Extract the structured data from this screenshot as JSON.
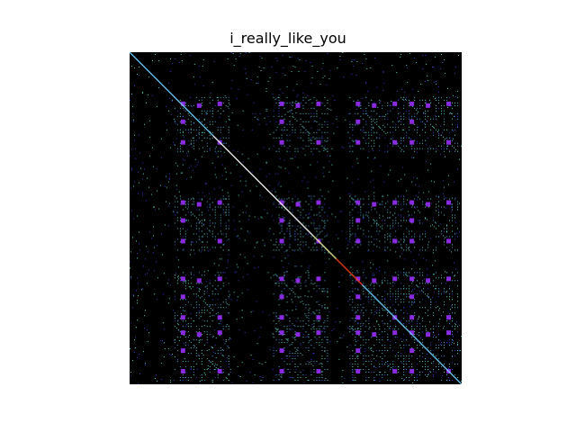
{
  "figure": {
    "background": "#ffffff"
  },
  "chart_data": {
    "type": "heatmap",
    "title": "i_really_like_you",
    "xlabel": "",
    "ylabel": "",
    "grid": false,
    "legend": "none",
    "axes_visible": false,
    "matrix_size": 370,
    "background_color": "#000000",
    "colormap": [
      "#000000",
      "#3b3bd8",
      "#4a9fd8",
      "#5ad7c8",
      "#8ae8b0",
      "#e8e890",
      "#e86a30",
      "#d02020"
    ],
    "diagonal": {
      "from": [
        0,
        0
      ],
      "to": [
        370,
        370
      ],
      "color_sequence": [
        "#6fd0ff",
        "#ffffff",
        "#f0f0a0",
        "#ff3b1a",
        "#6fd0ff"
      ]
    },
    "repeated_block_starts": [
      50,
      160,
      245,
      305
    ],
    "block_size": 62,
    "block_highlight_color": "#8a2be2",
    "block_highlight_offsets": [
      [
        7,
        5
      ],
      [
        7,
        48
      ],
      [
        48,
        5
      ],
      [
        48,
        48
      ],
      [
        7,
        25
      ],
      [
        25,
        7
      ]
    ],
    "dotted_texture_color": "#5fd0c8"
  }
}
